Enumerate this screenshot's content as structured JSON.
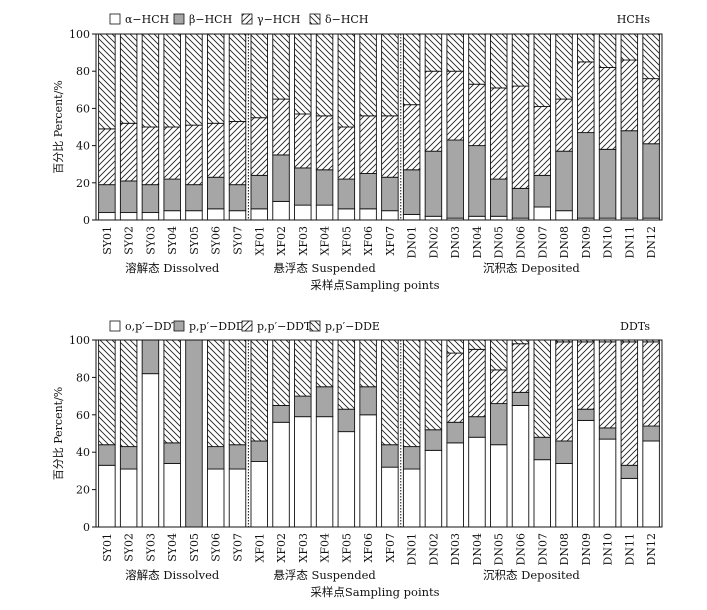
{
  "chart_data": [
    {
      "type": "bar",
      "stacked": true,
      "panel_label": "HCHs",
      "ylabel": "百分比 Percent/%",
      "xlabel": "采样点Sampling points",
      "ylim": [
        0,
        100
      ],
      "yticks": [
        0,
        20,
        40,
        60,
        80,
        100
      ],
      "categories": [
        "SY01",
        "SY02",
        "SY03",
        "SY04",
        "SY05",
        "SY06",
        "SY07",
        "XF01",
        "XF02",
        "XF03",
        "XF04",
        "XF05",
        "XF06",
        "XF07",
        "DN01",
        "DN02",
        "DN03",
        "DN04",
        "DN05",
        "DN06",
        "DN07",
        "DN08",
        "DN09",
        "DN10",
        "DN11",
        "DN12"
      ],
      "groups": [
        {
          "label": "溶解态 Dissolved",
          "count": 7
        },
        {
          "label": "悬浮态 Suspended",
          "count": 7
        },
        {
          "label": "沉积态 Deposited",
          "count": 12
        }
      ],
      "series": [
        {
          "name": "α−HCH",
          "pattern": "white",
          "values": [
            4,
            4,
            4,
            5,
            5,
            6,
            5,
            6,
            10,
            8,
            8,
            6,
            6,
            5,
            3,
            2,
            1,
            2,
            2,
            1,
            7,
            5,
            1,
            1,
            1,
            1
          ]
        },
        {
          "name": "β−HCH",
          "pattern": "gray",
          "values": [
            15,
            17,
            15,
            17,
            14,
            17,
            14,
            18,
            25,
            20,
            19,
            16,
            19,
            18,
            24,
            35,
            42,
            38,
            20,
            16,
            17,
            32,
            46,
            37,
            47,
            40
          ]
        },
        {
          "name": "γ−HCH",
          "pattern": "hatch",
          "values": [
            30,
            31,
            31,
            28,
            32,
            29,
            34,
            31,
            30,
            29,
            29,
            28,
            31,
            33,
            35,
            43,
            37,
            33,
            49,
            55,
            37,
            28,
            38,
            44,
            38,
            35
          ]
        },
        {
          "name": "δ−HCH",
          "pattern": "backhatch",
          "values": [
            51,
            48,
            50,
            50,
            49,
            48,
            47,
            45,
            35,
            43,
            44,
            50,
            44,
            44,
            38,
            20,
            20,
            27,
            29,
            28,
            39,
            35,
            15,
            18,
            14,
            24
          ]
        }
      ]
    },
    {
      "type": "bar",
      "stacked": true,
      "panel_label": "DDTs",
      "ylabel": "百分比 Percent/%",
      "xlabel": "采样点Sampling points",
      "ylim": [
        0,
        100
      ],
      "yticks": [
        0,
        20,
        40,
        60,
        80,
        100
      ],
      "categories": [
        "SY01",
        "SY02",
        "SY03",
        "SY04",
        "SY05",
        "SY06",
        "SY07",
        "XF01",
        "XF02",
        "XF03",
        "XF04",
        "XF05",
        "XF06",
        "XF07",
        "DN01",
        "DN02",
        "DN03",
        "DN04",
        "DN05",
        "DN06",
        "DN07",
        "DN08",
        "DN09",
        "DN10",
        "DN11",
        "DN12"
      ],
      "groups": [
        {
          "label": "溶解态 Dissolved",
          "count": 7
        },
        {
          "label": "悬浮态 Suspended",
          "count": 7
        },
        {
          "label": "沉积态 Deposited",
          "count": 12
        }
      ],
      "series": [
        {
          "name": "o,p′−DDT",
          "pattern": "white",
          "values": [
            33,
            31,
            82,
            34,
            0,
            31,
            31,
            35,
            56,
            59,
            59,
            51,
            60,
            32,
            31,
            41,
            45,
            48,
            44,
            65,
            36,
            34,
            57,
            47,
            26,
            46
          ]
        },
        {
          "name": "p,p′−DDD",
          "pattern": "gray",
          "values": [
            11,
            12,
            18,
            11,
            100,
            12,
            13,
            11,
            9,
            11,
            16,
            12,
            15,
            12,
            12,
            11,
            11,
            11,
            22,
            7,
            12,
            12,
            6,
            6,
            7,
            8
          ]
        },
        {
          "name": "p,p′−DDT",
          "pattern": "hatch",
          "values": [
            0,
            0,
            0,
            0,
            0,
            0,
            0,
            0,
            0,
            0,
            0,
            0,
            0,
            0,
            0,
            0,
            37,
            36,
            18,
            26,
            0,
            53,
            36,
            46,
            66,
            45
          ]
        },
        {
          "name": "p,p′−DDE",
          "pattern": "backhatch",
          "values": [
            56,
            57,
            0,
            55,
            0,
            57,
            56,
            54,
            35,
            30,
            25,
            37,
            25,
            56,
            57,
            48,
            7,
            5,
            16,
            2,
            52,
            1,
            1,
            1,
            1,
            1
          ]
        }
      ]
    }
  ]
}
